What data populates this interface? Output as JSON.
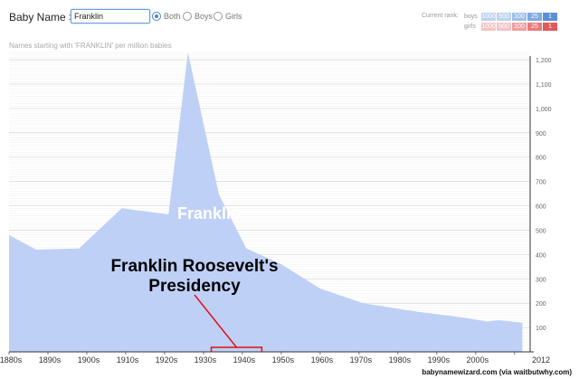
{
  "header": {
    "brand": "Baby Name >",
    "input_value": "Franklin",
    "radios": [
      {
        "label": "Both",
        "selected": true
      },
      {
        "label": "Boys",
        "selected": false
      },
      {
        "label": "Girls",
        "selected": false
      }
    ]
  },
  "rank": {
    "title": "Current rank:",
    "rows": [
      {
        "label": "boys",
        "cells": [
          "1000",
          "500",
          "100",
          "25",
          "1"
        ],
        "colors": [
          "#bcd3f0",
          "#bcd3f0",
          "#9fbfe9",
          "#7fa9e0",
          "#5b8fd6"
        ]
      },
      {
        "label": "girls",
        "cells": [
          "1000",
          "500",
          "100",
          "25",
          "1"
        ],
        "colors": [
          "#f4c4c4",
          "#f4c4c4",
          "#ee9e9e",
          "#e87a7a",
          "#e05a5a"
        ]
      }
    ]
  },
  "subtitle": "Names starting with 'FRANKLIN' per million babies",
  "annotation": {
    "text": "Franklin Roosevelt's\nPresidency",
    "line_color": "#e01010",
    "bracket_start": 1932,
    "bracket_end": 1945
  },
  "credit": "babynamewizard.com (via waitbutwhy.com)",
  "colors": {
    "area": "#bfd0f7",
    "axis": "#333333",
    "grid": "#dddddd"
  },
  "chart_data": {
    "type": "area",
    "series": [
      {
        "name": "Franklin",
        "x": [
          1880,
          1887,
          1898,
          1909,
          1921,
          1926,
          1934,
          1941,
          1950,
          1960,
          1971,
          1985,
          1995,
          2003,
          2006,
          2012
        ],
        "values": [
          480,
          420,
          425,
          590,
          565,
          1230,
          645,
          425,
          360,
          260,
          200,
          165,
          145,
          125,
          130,
          120
        ]
      }
    ],
    "xlabels": [
      "1880s",
      "1890s",
      "1900s",
      "1910s",
      "1920s",
      "1930s",
      "1940s",
      "1950s",
      "1960s",
      "1970s",
      "1980s",
      "1990s",
      "2000s",
      "2012"
    ],
    "xlim": [
      1880,
      2014
    ],
    "yticks": [
      "100",
      "200",
      "300",
      "400",
      "500",
      "600",
      "700",
      "800",
      "900",
      "1,000",
      "1,100",
      "1,200"
    ],
    "ylim": [
      0,
      1230
    ],
    "grid": true
  }
}
